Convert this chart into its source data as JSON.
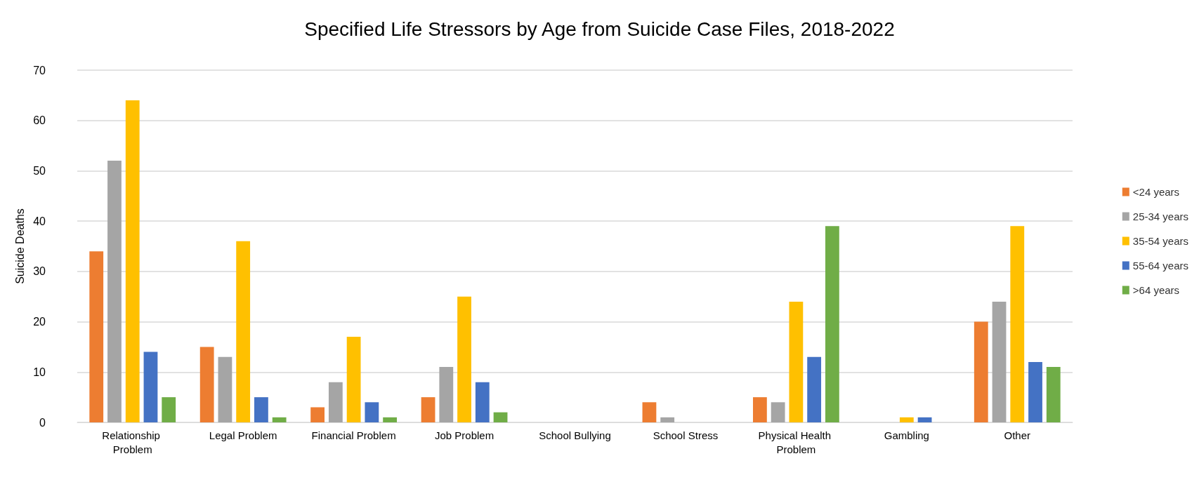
{
  "chart_data": {
    "type": "bar",
    "title": "Specified Life Stressors by Age from Suicide Case Files, 2018-2022",
    "ylabel": "Suicide Deaths",
    "categories": [
      "Relationship Problem",
      "Legal Problem",
      "Financial Problem",
      "Job Problem",
      "School Bullying",
      "School Stress",
      "Physical Health Problem",
      "Gambling",
      "Other"
    ],
    "series": [
      {
        "name": "<24 years",
        "color": "#ed7d31",
        "values": [
          34,
          15,
          3,
          5,
          0,
          4,
          5,
          0,
          20
        ]
      },
      {
        "name": "25-34 years",
        "color": "#a5a5a5",
        "values": [
          52,
          13,
          8,
          11,
          0,
          1,
          4,
          0,
          24
        ]
      },
      {
        "name": "35-54 years",
        "color": "#ffc000",
        "values": [
          64,
          36,
          17,
          25,
          0,
          0,
          24,
          1,
          39
        ]
      },
      {
        "name": "55-64 years",
        "color": "#4472c4",
        "values": [
          14,
          5,
          4,
          8,
          0,
          0,
          13,
          1,
          12
        ]
      },
      {
        "name": ">64 years",
        "color": "#70ad47",
        "values": [
          5,
          1,
          1,
          2,
          0,
          0,
          39,
          0,
          11
        ]
      }
    ],
    "ylim": [
      0,
      70
    ],
    "yticks": [
      0,
      10,
      20,
      30,
      40,
      50,
      60,
      70
    ],
    "grid": "y",
    "legend": "right"
  }
}
